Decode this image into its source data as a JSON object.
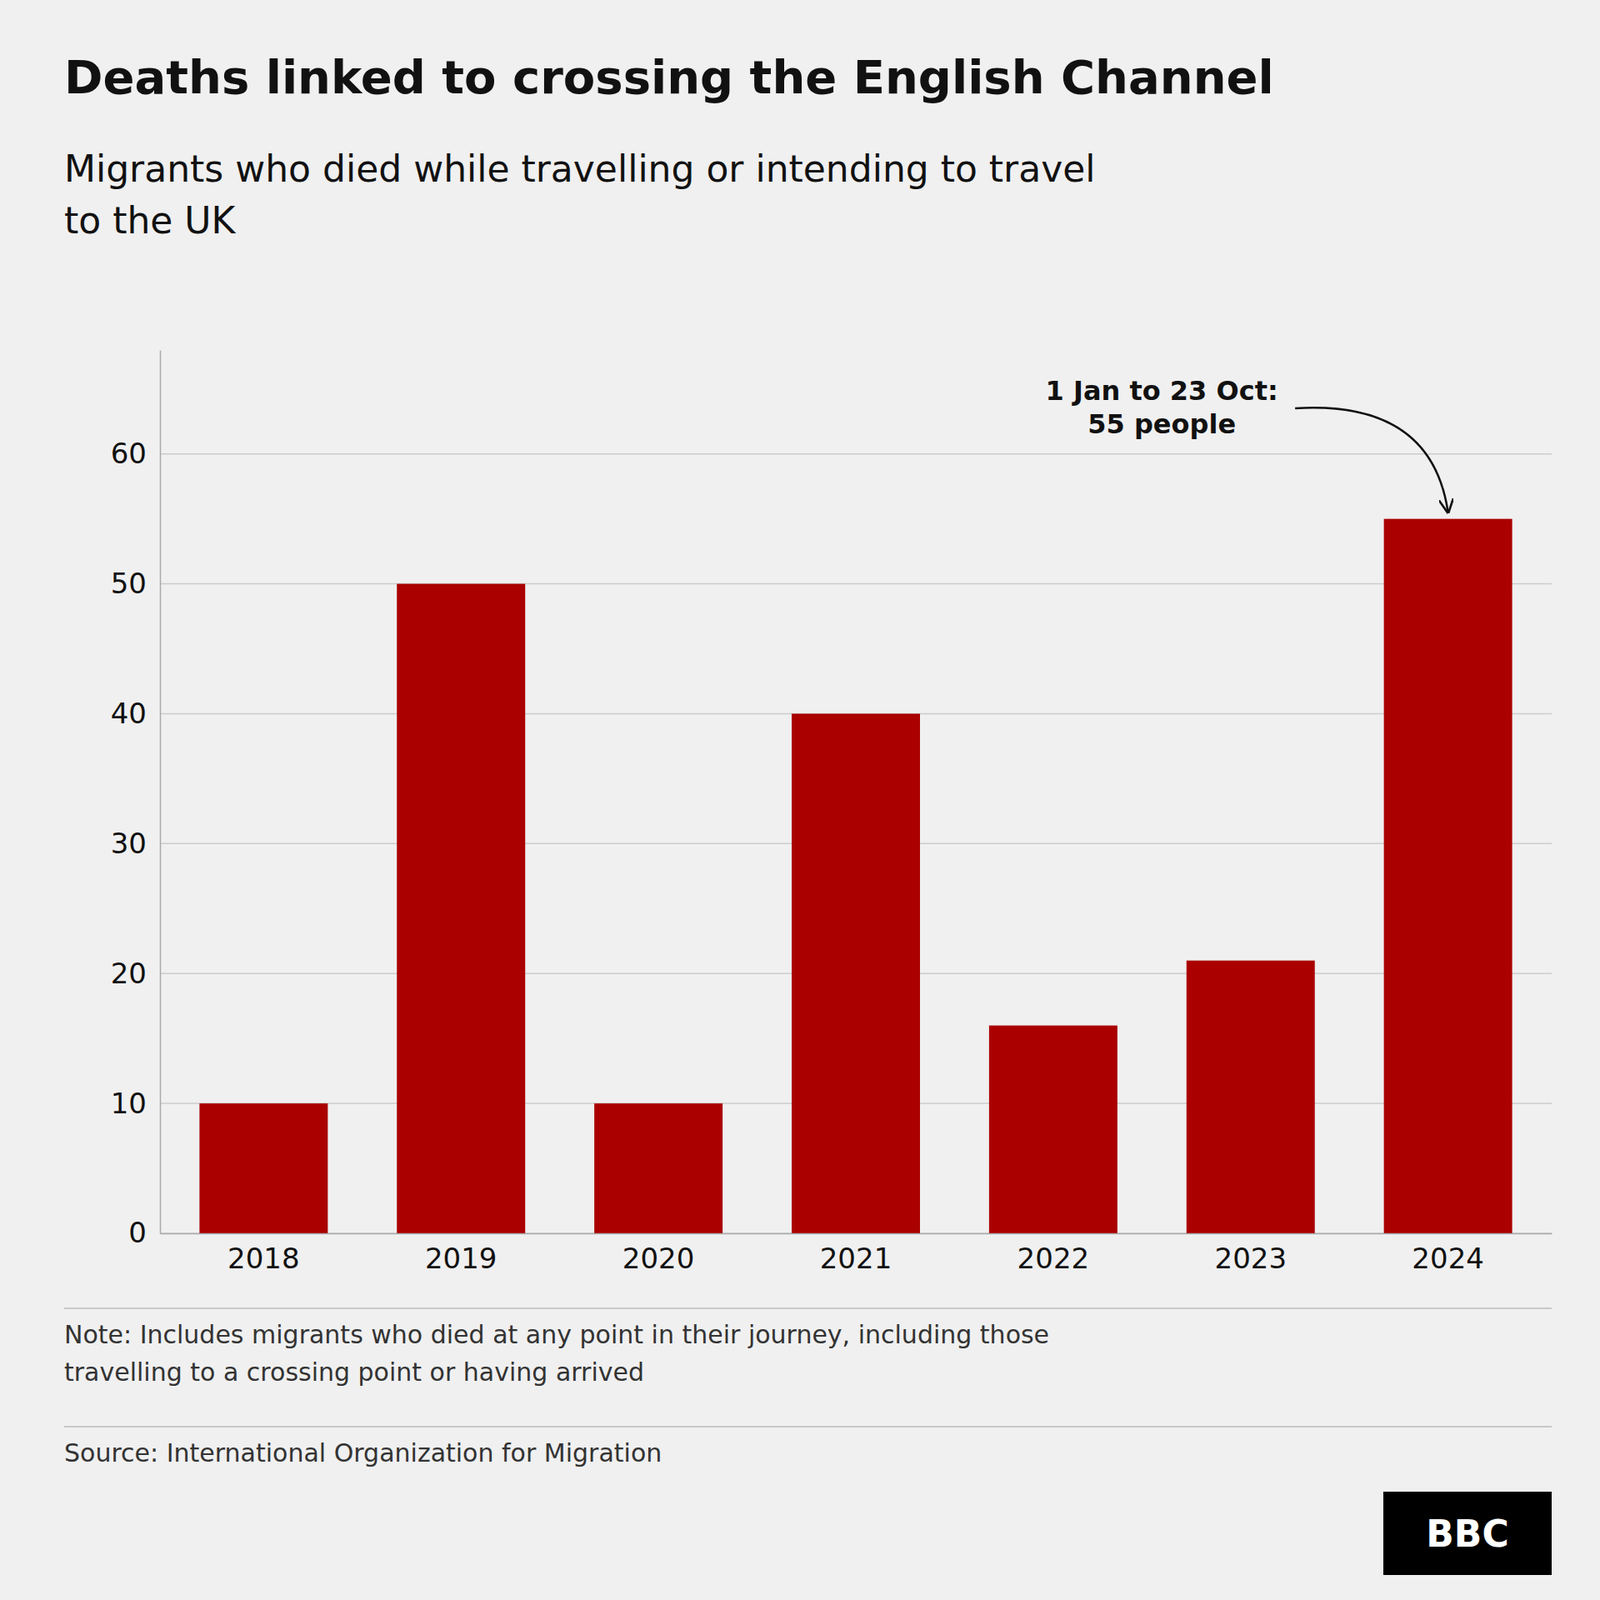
{
  "chart_data": {
    "type": "bar",
    "title": "Deaths linked to crossing the English Channel",
    "subtitle": "Migrants who died while travelling or intending to travel\nto the UK",
    "categories": [
      "2018",
      "2019",
      "2020",
      "2021",
      "2022",
      "2023",
      "2024"
    ],
    "values": [
      10,
      50,
      10,
      40,
      16,
      21,
      55
    ],
    "color": "#aa0000",
    "ylim": [
      0,
      68
    ],
    "yticks": [
      0,
      10,
      20,
      30,
      40,
      50,
      60
    ],
    "grid": true,
    "annotations": [
      {
        "text": "1 Jan to 23 Oct:\n55 people",
        "category": "2024"
      }
    ],
    "note": "Note: Includes migrants who died at any point in their journey, including those\ntravelling to a crossing point or having arrived",
    "source": "Source: International Organization for Migration",
    "logo": "BBC"
  }
}
